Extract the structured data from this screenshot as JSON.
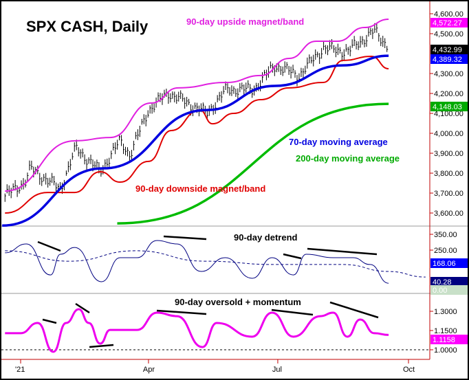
{
  "chart_data": [
    {
      "type": "line",
      "title": "SPX CASH, Daily",
      "ylim": [
        3530,
        4630
      ],
      "y_ticks": [
        "4,600.00",
        "4,500.00",
        "4,300.00",
        "4,200.00",
        "4,100.00",
        "4,000.00",
        "3,900.00",
        "3,800.00",
        "3,700.00",
        "3,600.00"
      ],
      "y_tick_values": [
        4600,
        4500,
        4300,
        4200,
        4100,
        4000,
        3900,
        3800,
        3700,
        3600
      ],
      "annotations": [
        "90-day upside magnet/band",
        "70-day moving average",
        "200-day moving average",
        "90-day downside magnet/band"
      ],
      "last_value_labels": [
        {
          "text": "4,572.27",
          "color": "#ff00ff"
        },
        {
          "text": "4,432.99",
          "color": "#000000"
        },
        {
          "text": "4,389.32",
          "color": "#0000ff"
        },
        {
          "text": "4,148.03",
          "color": "#00aa00"
        }
      ],
      "series": [
        {
          "name": "SPX CASH",
          "color": "#000000",
          "style": "ohlc",
          "points": [
            [
              "2020-12-21",
              3686
            ],
            [
              "2021-01-04",
              3755
            ],
            [
              "2021-01-08",
              3824
            ],
            [
              "2021-01-29",
              3720
            ],
            [
              "2021-02-09",
              3927
            ],
            [
              "2021-02-26",
              3807
            ],
            [
              "2021-03-12",
              3962
            ],
            [
              "2021-03-19",
              3893
            ],
            [
              "2021-04-01",
              4117
            ],
            [
              "2021-04-15",
              4203
            ],
            [
              "2021-05-12",
              4100
            ],
            [
              "2021-05-26",
              4220
            ],
            [
              "2021-06-14",
              4220
            ],
            [
              "2021-06-29",
              4341
            ],
            [
              "2021-07-16",
              4290
            ],
            [
              "2021-08-02",
              4428
            ],
            [
              "2021-08-19",
              4410
            ],
            [
              "2021-09-07",
              4514
            ],
            [
              "2021-09-17",
              4432.99
            ]
          ]
        },
        {
          "name": "90-day upside magnet/band",
          "color": "#e020e0",
          "points": [
            [
              "2020-12-21",
              3710
            ],
            [
              "2021-02-08",
              3962
            ],
            [
              "2021-03-05",
              3979
            ],
            [
              "2021-04-03",
              4152
            ],
            [
              "2021-04-22",
              4228
            ],
            [
              "2021-05-26",
              4255
            ],
            [
              "2021-06-19",
              4290
            ],
            [
              "2021-07-09",
              4376
            ],
            [
              "2021-07-28",
              4462
            ],
            [
              "2021-08-12",
              4462
            ],
            [
              "2021-08-31",
              4531
            ],
            [
              "2021-09-17",
              4572.27
            ]
          ]
        },
        {
          "name": "90-day downside magnet/band",
          "color": "#e00000",
          "points": [
            [
              "2020-12-21",
              3600
            ],
            [
              "2021-01-20",
              3703
            ],
            [
              "2021-02-08",
              3703
            ],
            [
              "2021-02-26",
              3807
            ],
            [
              "2021-03-12",
              3755
            ],
            [
              "2021-04-01",
              3859
            ],
            [
              "2021-04-17",
              4014
            ],
            [
              "2021-05-07",
              4117
            ],
            [
              "2021-05-16",
              4048
            ],
            [
              "2021-05-31",
              4100
            ],
            [
              "2021-06-19",
              4169
            ],
            [
              "2021-07-09",
              4228
            ],
            [
              "2021-08-02",
              4255
            ],
            [
              "2021-08-16",
              4366
            ],
            [
              "2021-09-05",
              4386
            ],
            [
              "2021-09-17",
              4324
            ]
          ]
        },
        {
          "name": "70-day moving average",
          "color": "#0000e0",
          "points": [
            [
              "2020-12-19",
              3537
            ],
            [
              "2021-02-28",
              3824
            ],
            [
              "2021-05-12",
              4117
            ],
            [
              "2021-06-29",
              4238
            ],
            [
              "2021-08-16",
              4341
            ],
            [
              "2021-09-17",
              4389.32
            ]
          ]
        },
        {
          "name": "200-day moving average",
          "color": "#00bb00",
          "points": [
            [
              "2021-03-10",
              3548
            ],
            [
              "2021-09-17",
              4148.03
            ]
          ]
        }
      ]
    },
    {
      "type": "line",
      "title": "90-day detrend",
      "ylim": [
        -10,
        390
      ],
      "y_ticks": [
        "350.00",
        "250.00"
      ],
      "y_tick_values": [
        350,
        250
      ],
      "last_value_labels": [
        {
          "text": "168.06",
          "color": "#0000ff"
        },
        {
          "text": "40.28",
          "color": "#000080"
        },
        {
          "text": "0.00",
          "color": "#c8e0c8"
        }
      ],
      "series": [
        {
          "name": "90-day detrend",
          "color": "#000080",
          "points": [
            [
              "2020-12-21",
              233
            ],
            [
              "2021-01-05",
              289
            ],
            [
              "2021-01-22",
              93
            ],
            [
              "2021-01-29",
              224
            ],
            [
              "2021-02-08",
              267
            ],
            [
              "2021-02-27",
              50
            ],
            [
              "2021-03-12",
              202
            ],
            [
              "2021-03-24",
              202
            ],
            [
              "2021-04-07",
              311
            ],
            [
              "2021-04-21",
              289
            ],
            [
              "2021-05-08",
              115
            ],
            [
              "2021-05-25",
              202
            ],
            [
              "2021-06-13",
              72
            ],
            [
              "2021-06-27",
              202
            ],
            [
              "2021-07-12",
              93
            ],
            [
              "2021-07-21",
              224
            ],
            [
              "2021-08-09",
              202
            ],
            [
              "2021-08-23",
              202
            ],
            [
              "2021-09-04",
              159
            ],
            [
              "2021-09-17",
              40.28
            ]
          ]
        },
        {
          "name": "average",
          "color": "#000080",
          "dashed": true,
          "points": [
            [
              "2020-12-21",
              246
            ],
            [
              "2021-02-04",
              180
            ],
            [
              "2021-03-23",
              246
            ],
            [
              "2021-05-11",
              180
            ],
            [
              "2021-06-29",
              159
            ],
            [
              "2021-08-16",
              159
            ],
            [
              "2021-09-17",
              115
            ],
            [
              "2021-10-13",
              80
            ]
          ]
        }
      ]
    },
    {
      "type": "line",
      "title": "90-day oversold + momentum",
      "ylim": [
        0.93,
        1.39
      ],
      "y_ticks": [
        "1.3000",
        "1.1500",
        "1.0000"
      ],
      "y_tick_values": [
        1.3,
        1.15,
        1.0
      ],
      "last_value_labels": [
        {
          "text": "1.1158",
          "color": "#ff00ff"
        }
      ],
      "reference_line": 1.0,
      "series": [
        {
          "name": "90-day oversold + momentum",
          "color": "#ee00ee",
          "points": [
            [
              "2020-12-21",
              1.129
            ],
            [
              "2021-01-01",
              1.129
            ],
            [
              "2021-01-13",
              1.209
            ],
            [
              "2021-01-24",
              0.984
            ],
            [
              "2021-02-02",
              1.209
            ],
            [
              "2021-02-11",
              1.316
            ],
            [
              "2021-02-18",
              1.209
            ],
            [
              "2021-02-26",
              1.048
            ],
            [
              "2021-03-05",
              1.155
            ],
            [
              "2021-03-24",
              1.155
            ],
            [
              "2021-04-07",
              1.289
            ],
            [
              "2021-04-21",
              1.262
            ],
            [
              "2021-05-09",
              1.021
            ],
            [
              "2021-05-19",
              1.209
            ],
            [
              "2021-06-13",
              1.102
            ],
            [
              "2021-06-27",
              1.289
            ],
            [
              "2021-07-12",
              1.102
            ],
            [
              "2021-07-31",
              1.262
            ],
            [
              "2021-08-09",
              1.289
            ],
            [
              "2021-08-19",
              1.102
            ],
            [
              "2021-08-28",
              1.236
            ],
            [
              "2021-09-07",
              1.129
            ],
            [
              "2021-09-17",
              1.1158
            ]
          ]
        }
      ]
    }
  ],
  "x_axis": {
    "ticks": [
      {
        "label": "'21",
        "date": "2021-01-01"
      },
      {
        "label": "Apr",
        "date": "2021-04-01"
      },
      {
        "label": "Jul",
        "date": "2021-07-01"
      },
      {
        "label": "Oct",
        "date": "2021-10-01"
      }
    ]
  }
}
